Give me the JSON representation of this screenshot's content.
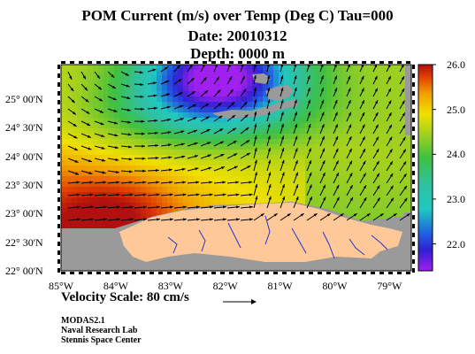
{
  "title": {
    "line1": "POM Current (m/s) over Temp (Deg C)  Tau=000",
    "line2": "Date: 20010312",
    "line3": "Depth: 0000 m"
  },
  "axes": {
    "lat_labels": [
      "25° 00'N",
      "24° 30'N",
      "24° 00'N",
      "23° 30'N",
      "23° 00'N",
      "22° 30'N",
      "22° 00'N"
    ],
    "lon_labels": [
      "85°W",
      "84°W",
      "83°W",
      "82°W",
      "81°W",
      "80°W",
      "79°W"
    ],
    "lat_range": [
      22.0,
      25.6
    ],
    "lon_range": [
      -85.0,
      -78.6
    ]
  },
  "colorbar": {
    "min": 21.4,
    "max": 26.0,
    "labels": [
      "26.0",
      "25.0",
      "24.0",
      "23.0",
      "22.0"
    ]
  },
  "velocity_scale": {
    "text": "Velocity Scale:  80 cm/s"
  },
  "credits": [
    "MODAS2.1",
    "Naval Research Lab",
    "Stennis Space Center"
  ],
  "colors": {
    "land": "#ffc899",
    "no_data": "#9a9a9a",
    "river": "#2233cc",
    "arrow": "#000000"
  }
}
